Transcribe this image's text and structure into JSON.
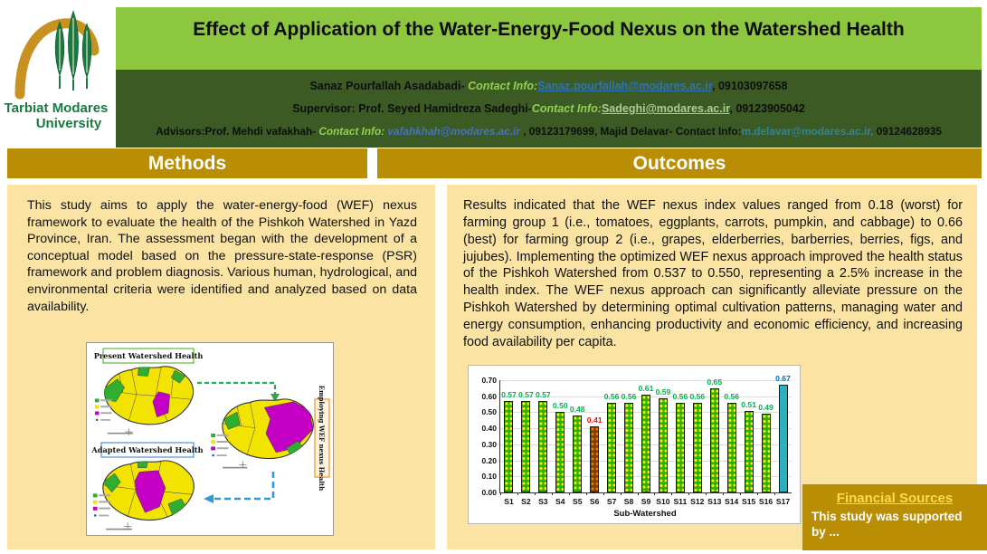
{
  "logo": {
    "line1": "Tarbiat Modares",
    "line2": "University"
  },
  "title": "Effect of Application of the Water-Energy-Food Nexus on the Watershed Health",
  "authors": {
    "line1": {
      "name": "Sanaz Pourfallah Asadabadi- ",
      "contact_label": "Contact Info:",
      "email": "Sanaz.pourfallah@modares.ac.ir",
      "phone": ", 09103097658"
    },
    "line2": {
      "name": "Supervisor: Prof. Seyed Hamidreza Sadeghi-",
      "contact_label": "Contact Info:",
      "email": "Sadeghi@modares.ac.ir",
      "phone": ", 09123905042"
    },
    "line3": {
      "name1": "Advisors:Prof. Mehdi vafakhah- ",
      "contact_label1": "Contact Info: ",
      "email1": "vafahkhah@modares.ac.ir",
      "phone1": " , 09123179699, ",
      "name2": "Majid Delavar- ",
      "contact_label2": "Contact Info:",
      "email2": "m.delavar@modares.ac.ir,",
      "phone2": " 09124628935"
    }
  },
  "methods": {
    "header": "Methods",
    "body": "This study aims to apply the water-energy-food (WEF) nexus framework to evaluate the health of the Pishkoh Watershed in Yazd Province, Iran. The assessment began with the development of a conceptual model based on the pressure-state-response (PSR) framework and problem diagnosis. Various human, hydrological, and environmental criteria were identified and analyzed based on data availability.",
    "figure": {
      "map1_title": "Present Watershed Health",
      "map2_label": "Employing WEF nexus Health",
      "map3_title": "Adapted Watershed Health"
    }
  },
  "outcomes": {
    "header": "Outcomes",
    "body": "Results indicated that the WEF nexus index values ranged from 0.18 (worst) for farming group 1 (i.e., tomatoes, eggplants, carrots, pumpkin, and cabbage) to 0.66 (best) for farming group 2 (i.e., grapes, elderberries, barberries, berries, figs, and jujubes). Implementing the optimized WEF nexus approach improved the health status of the Pishkoh Watershed from 0.537 to 0.550, representing a 2.5% increase in the health index. The WEF nexus approach can significantly alleviate pressure on the Pishkoh Watershed by determining optimal cultivation patterns, managing water and energy consumption, enhancing productivity and economic efficiency, and increasing food availability per capita."
  },
  "chart_data": {
    "type": "bar",
    "categories": [
      "S1",
      "S2",
      "S3",
      "S4",
      "S5",
      "S6",
      "S7",
      "S8",
      "S9",
      "S10",
      "S11",
      "S12",
      "S13",
      "S14",
      "S15",
      "S16",
      "S17"
    ],
    "values": [
      0.57,
      0.57,
      0.57,
      0.5,
      0.48,
      0.41,
      0.56,
      0.56,
      0.61,
      0.59,
      0.56,
      0.56,
      0.65,
      0.56,
      0.51,
      0.49,
      0.67
    ],
    "bar_styles": [
      "green-dots",
      "green-dots",
      "green-dots",
      "green-dots",
      "green-dots",
      "brown-dots",
      "green-dots",
      "green-dots",
      "green-dots",
      "green-dots",
      "green-dots",
      "green-dots",
      "green-dots",
      "green-dots",
      "green-dots",
      "green-dots",
      "teal-solid"
    ],
    "label_colors": [
      "#00B050",
      "#00B050",
      "#00B050",
      "#00B050",
      "#00B050",
      "#FF0000",
      "#00B050",
      "#00B050",
      "#00B050",
      "#00B050",
      "#00B050",
      "#00B050",
      "#00B050",
      "#00B050",
      "#00B050",
      "#00B050",
      "#0070C0"
    ],
    "title": "",
    "xlabel": "Sub-Watershed",
    "ylabel": "",
    "ylim": [
      0,
      0.7
    ],
    "yticks": [
      "0.00",
      "0.10",
      "0.20",
      "0.30",
      "0.40",
      "0.50",
      "0.60",
      "0.70"
    ],
    "grid": true,
    "legend": false
  },
  "financial": {
    "title": "Financial Sources",
    "body": "This study was supported by ..."
  },
  "colors": {
    "title_bg": "#8DC63F",
    "author_bg": "#3C5A24",
    "section_gold": "#B98E04",
    "panel_tan": "#FAE3A3",
    "contact_green": "#92D050",
    "email_blue": "#2E74B5",
    "value_green": "#00B050",
    "value_red": "#FF0000",
    "value_blue": "#0070C0",
    "map_yellow": "#F2E400",
    "map_green": "#2FAE2F",
    "map_magenta": "#C400C4"
  }
}
